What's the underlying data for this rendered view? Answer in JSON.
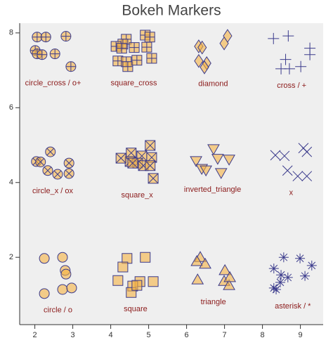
{
  "chart_data": {
    "type": "scatter",
    "title": "Bokeh Markers",
    "xlim": [
      1.6,
      9.6
    ],
    "ylim": [
      0.2,
      8.26
    ],
    "xticks": [
      2,
      3,
      4,
      5,
      6,
      7,
      8,
      9
    ],
    "yticks": [
      2,
      4,
      6,
      8
    ],
    "series": [
      {
        "name": "circle_cross / o+",
        "marker": "circle_cross",
        "color": "#3b3b8c",
        "fill": "#f5b342",
        "x": [
          2.06,
          2.29,
          2.82,
          2.01,
          2.06,
          2.19,
          2.53,
          2.95
        ],
        "values": [
          7.89,
          7.89,
          7.91,
          7.53,
          7.44,
          7.42,
          7.44,
          7.1
        ]
      },
      {
        "name": "square_cross",
        "marker": "square_cross",
        "color": "#3b3b8c",
        "fill": "#f5b342",
        "x": [
          4.41,
          4.32,
          4.91,
          5.03,
          4.14,
          4.29,
          4.62,
          4.95,
          4.19,
          4.41,
          4.45,
          4.69,
          5.08
        ],
        "values": [
          7.83,
          7.7,
          7.94,
          7.89,
          7.64,
          7.59,
          7.61,
          7.62,
          7.25,
          7.23,
          7.1,
          7.27,
          7.32
        ]
      },
      {
        "name": "diamond",
        "marker": "diamond",
        "color": "#3b3b8c",
        "fill": "#f5b342",
        "x": [
          7.08,
          6.99,
          6.32,
          6.41,
          6.32,
          6.53,
          6.47
        ],
        "values": [
          7.92,
          7.72,
          7.64,
          7.61,
          7.25,
          7.19,
          7.08
        ]
      },
      {
        "name": "cross / +",
        "marker": "cross",
        "color": "#3b3b8c",
        "fill": "none",
        "x": [
          8.29,
          8.68,
          9.25,
          8.61,
          8.49,
          8.71,
          9.01,
          9.25
        ],
        "values": [
          7.85,
          7.92,
          7.59,
          7.29,
          7.04,
          7.04,
          7.1,
          7.42
        ]
      },
      {
        "name": "circle_x / ox",
        "marker": "circle_x",
        "color": "#3b3b8c",
        "fill": "#f5b342",
        "x": [
          2.04,
          2.41,
          2.9,
          2.34,
          2.9,
          2.6,
          2.15
        ],
        "values": [
          4.56,
          4.82,
          4.52,
          4.32,
          4.24,
          4.22,
          4.55
        ]
      },
      {
        "name": "square_x",
        "marker": "square_x",
        "color": "#3b3b8c",
        "fill": "#f5b342",
        "x": [
          4.54,
          4.82,
          5.04,
          4.51,
          4.71,
          4.86,
          5.08,
          5.04,
          5.12,
          4.27,
          4.58
        ],
        "values": [
          4.79,
          4.71,
          4.99,
          4.56,
          4.52,
          4.45,
          4.67,
          4.45,
          4.11,
          4.65,
          4.52
        ]
      },
      {
        "name": "inverted_triangle",
        "marker": "inverted_triangle",
        "color": "#3b3b8c",
        "fill": "#f5b342",
        "x": [
          6.71,
          7.12,
          6.25,
          6.82,
          6.4,
          6.51,
          6.91
        ],
        "values": [
          4.9,
          4.62,
          4.58,
          4.64,
          4.37,
          4.33,
          4.26
        ]
      },
      {
        "name": "x",
        "marker": "x",
        "color": "#3b3b8c",
        "fill": "none",
        "x": [
          8.34,
          8.58,
          9.08,
          9.17,
          8.66,
          8.93,
          9.17
        ],
        "values": [
          4.73,
          4.71,
          4.92,
          4.82,
          4.32,
          4.17,
          4.17
        ]
      },
      {
        "name": "circle / o",
        "marker": "circle",
        "color": "#3b3b8c",
        "fill": "#f5b342",
        "x": [
          2.25,
          2.73,
          2.8,
          2.82,
          2.25,
          2.73,
          2.97
        ],
        "values": [
          1.97,
          2.0,
          1.65,
          1.55,
          1.03,
          1.14,
          1.18
        ]
      },
      {
        "name": "square",
        "marker": "square",
        "color": "#3b3b8c",
        "fill": "#f5b342",
        "x": [
          4.43,
          4.91,
          4.32,
          4.19,
          4.77,
          5.12,
          4.58,
          4.54,
          4.69
        ],
        "values": [
          1.97,
          2.0,
          1.74,
          1.38,
          1.35,
          1.35,
          1.23,
          1.06,
          1.25
        ]
      },
      {
        "name": "triangle",
        "marker": "triangle",
        "color": "#3b3b8c",
        "fill": "#f5b342",
        "x": [
          6.36,
          6.27,
          6.49,
          6.29,
          7.01,
          6.99,
          7.12,
          7.14
        ],
        "values": [
          2.0,
          1.89,
          1.82,
          1.4,
          1.65,
          1.36,
          1.25,
          1.46
        ]
      },
      {
        "name": "asterisk / *",
        "marker": "asterisk",
        "color": "#3b3b8c",
        "fill": "none",
        "x": [
          8.56,
          8.99,
          9.3,
          8.3,
          8.49,
          8.67,
          8.47,
          9.12,
          8.36,
          8.3
        ],
        "values": [
          2.0,
          1.97,
          1.78,
          1.7,
          1.53,
          1.46,
          1.33,
          1.5,
          1.14,
          1.18
        ]
      }
    ]
  }
}
